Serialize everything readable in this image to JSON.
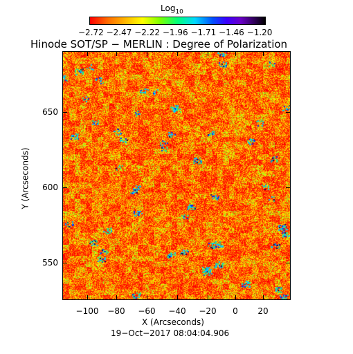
{
  "colorbar": {
    "label": "Log",
    "label_sub": "10",
    "tick_labels": [
      "−2.72",
      "−2.47",
      "−2.22",
      "−1.96",
      "−1.71",
      "−1.46",
      "−1.20"
    ]
  },
  "title": "Hinode SOT/SP − MERLIN : Degree of Polarization",
  "axes": {
    "xlabel": "X (Arcseconds)",
    "ylabel": "Y (Arcseconds)",
    "x_ticks": [
      "−100",
      "−80",
      "−60",
      "−40",
      "−20",
      "0",
      "20"
    ],
    "y_ticks": [
      "550",
      "600",
      "650"
    ]
  },
  "timestamp": "19−Oct−2017 08:04:04.906",
  "colors": {
    "background": "#ffffff",
    "low": "#ff0000",
    "mid": "#ffff00",
    "high": "#0000ff"
  }
}
